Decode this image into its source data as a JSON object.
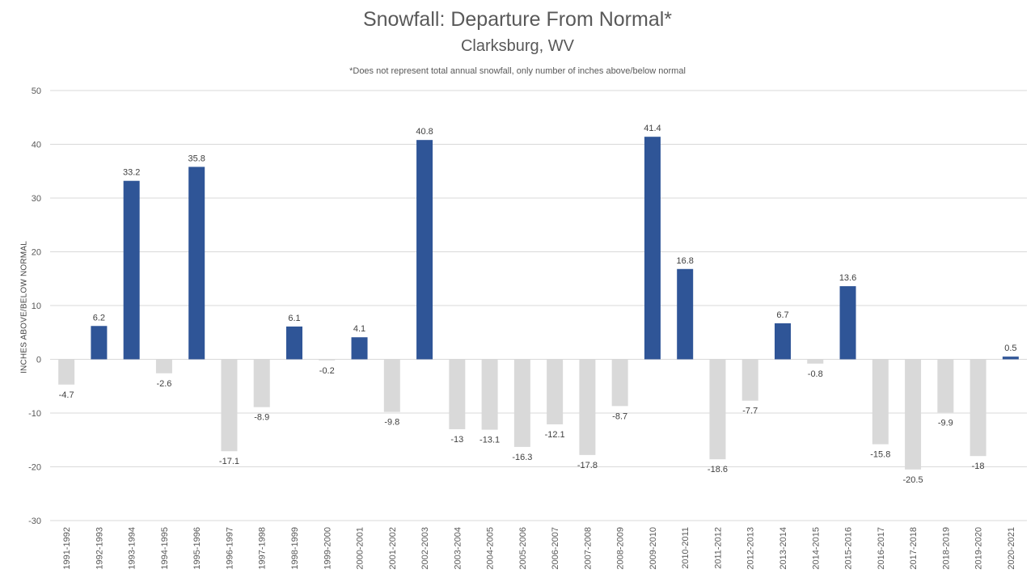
{
  "chart_data": {
    "type": "bar",
    "title": "Snowfall: Departure From Normal*",
    "subtitle": "Clarksburg, WV",
    "note": "*Does not represent  total annual snowfall, only number of inches above/below normal",
    "xlabel": "",
    "ylabel": "INCHES ABOVE/BELOW NORMAL",
    "ylim": [
      -30,
      50
    ],
    "yticks": [
      50,
      40,
      30,
      20,
      10,
      0,
      -10,
      -20,
      -30
    ],
    "grid": true,
    "legend": "none",
    "categories": [
      "1991-1992",
      "1992-1993",
      "1993-1994",
      "1994-1995",
      "1995-1996",
      "1996-1997",
      "1997-1998",
      "1998-1999",
      "1999-2000",
      "2000-2001",
      "2001-2002",
      "2002-2003",
      "2003-2004",
      "2004-2005",
      "2005-2006",
      "2006-2007",
      "2007-2008",
      "2008-2009",
      "2009-2010",
      "2010-2011",
      "2011-2012",
      "2012-2013",
      "2013-2014",
      "2014-2015",
      "2015-2016",
      "2016-2017",
      "2017-2018",
      "2018-2019",
      "2019-2020",
      "2020-2021"
    ],
    "values": [
      -4.7,
      6.2,
      33.2,
      -2.6,
      35.8,
      -17.1,
      -8.9,
      6.1,
      -0.2,
      4.1,
      -9.8,
      40.8,
      -13,
      -13.1,
      -16.3,
      -12.1,
      -17.8,
      -8.7,
      41.4,
      16.8,
      -18.6,
      -7.7,
      6.7,
      -0.8,
      13.6,
      -15.8,
      -20.5,
      -9.9,
      -18,
      0.5
    ],
    "colors": {
      "positive": "#2f5597",
      "negative": "#d9d9d9",
      "grid": "#d9d9d9",
      "text": "#595959"
    }
  }
}
